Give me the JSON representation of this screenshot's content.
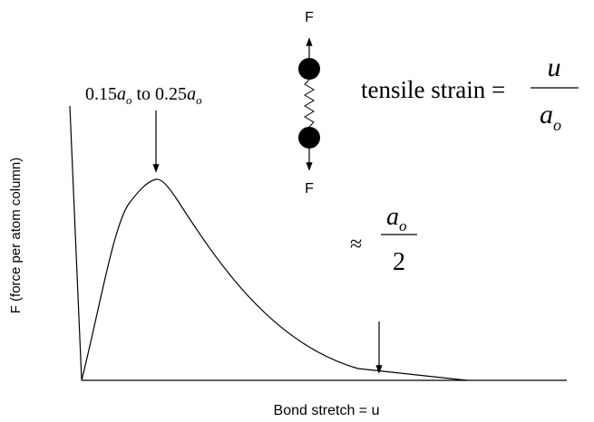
{
  "labels": {
    "force_top": "F",
    "force_bottom": "F",
    "peak": {
      "low": "0.15",
      "a1": "a",
      "o1": "o",
      "mid": " to 0.25",
      "a2": "a",
      "o2": "o"
    },
    "strain": {
      "text": "tensile strain =",
      "numerator": "u",
      "denominator_a": "a",
      "denominator_o": "o"
    },
    "approx": {
      "symbol": "≈",
      "numerator_a": "a",
      "numerator_o": "o",
      "denominator": "2"
    }
  },
  "y_axis_label": "F (force per atom column)",
  "x_axis_label": "Bond stretch = u"
}
